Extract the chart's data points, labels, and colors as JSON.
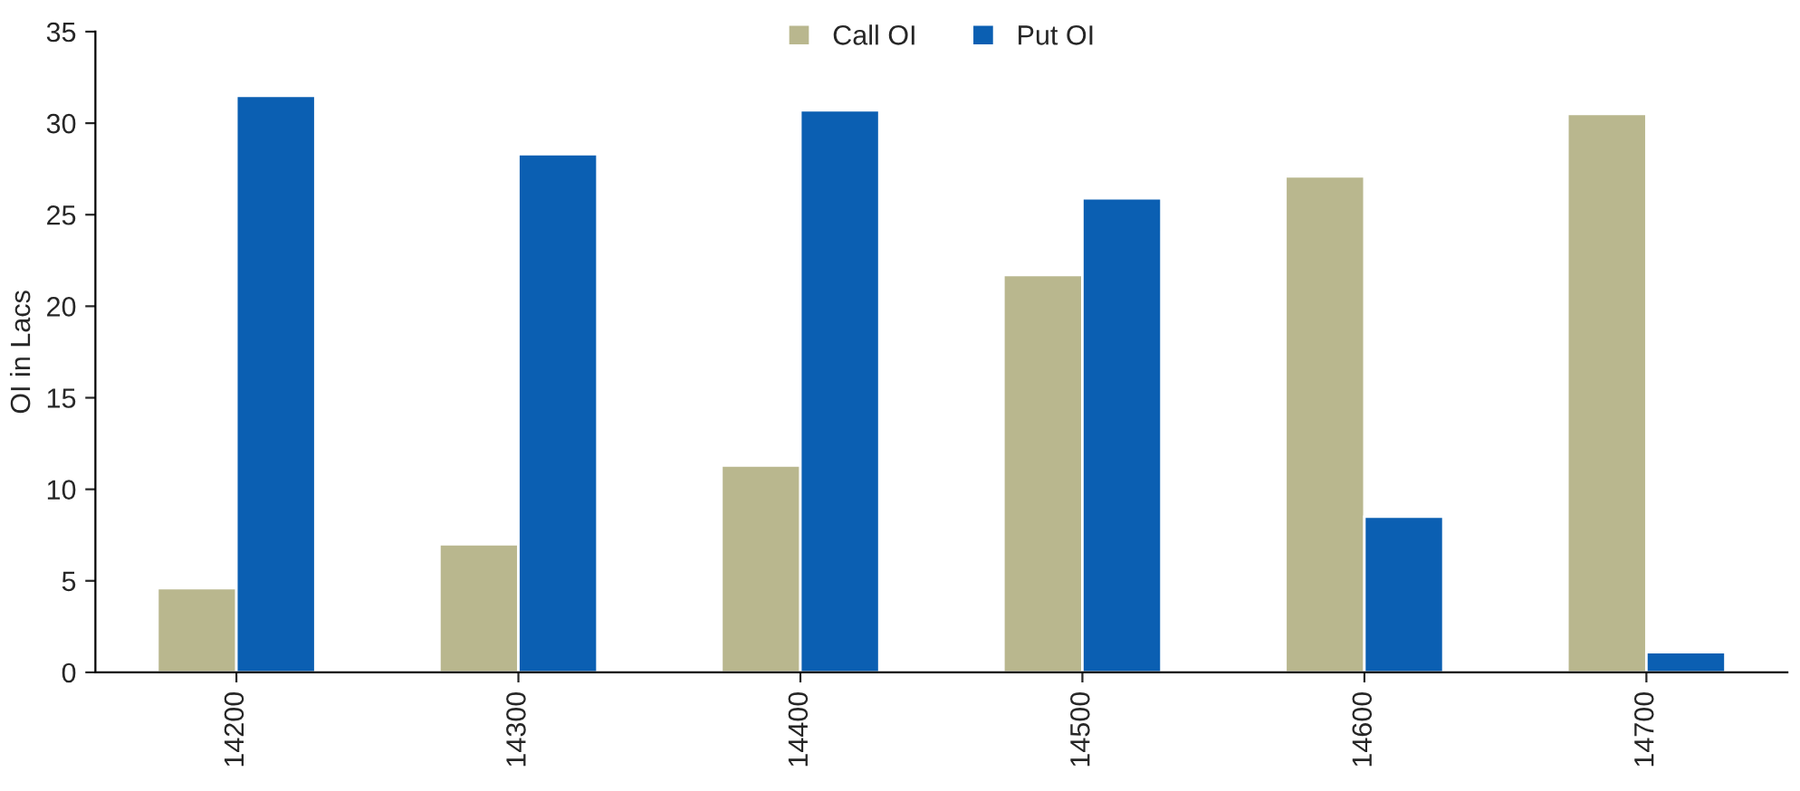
{
  "chart_data": {
    "type": "bar",
    "ylabel": "OI in Lacs",
    "categories": [
      "14200",
      "14300",
      "14400",
      "14500",
      "14600",
      "14700"
    ],
    "series": [
      {
        "name": "Call OI",
        "color": "#b9b78e",
        "values": [
          4.6,
          7.0,
          11.3,
          21.7,
          27.1,
          30.5
        ]
      },
      {
        "name": "Put OI",
        "color": "#0b5fb2",
        "values": [
          31.5,
          28.3,
          30.7,
          25.9,
          8.5,
          1.1
        ]
      }
    ],
    "ylim": [
      0,
      35
    ],
    "yticks": [
      0,
      5,
      10,
      15,
      20,
      25,
      30,
      35
    ],
    "grid": false,
    "legend": "top"
  }
}
